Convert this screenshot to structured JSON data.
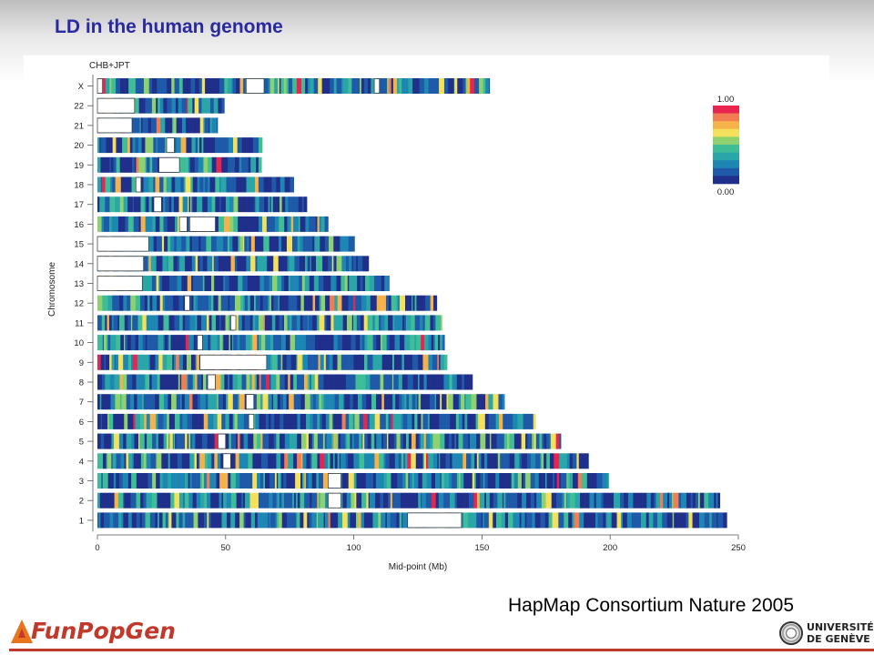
{
  "slide": {
    "title": "LD in the human genome",
    "citation": "HapMap Consortium Nature 2005",
    "logo_left_text": "FunPopGen",
    "logo_right_line1": "UNIVERSITÉ",
    "logo_right_line2": "DE GENÈVE",
    "accent_color": "#2a2aa0",
    "logo_color": "#c0392b"
  },
  "chart_data": {
    "type": "heatmap",
    "title": "CHB+JPT",
    "xlabel": "Mid-point (Mb)",
    "ylabel": "Chromosome",
    "xlim": [
      0,
      250
    ],
    "xticks": [
      0,
      50,
      100,
      150,
      200,
      250
    ],
    "grid": false,
    "legend": {
      "placement": "right",
      "max_label": "1.00",
      "min_label": "0.00",
      "colors": [
        "#1f2f8a",
        "#1e5aa8",
        "#1d86b3",
        "#2aa6a8",
        "#3fbd96",
        "#8fd16e",
        "#f4e05a",
        "#f6b24a",
        "#f27d52",
        "#e8244f"
      ]
    },
    "chromosomes": [
      {
        "name": "X",
        "length": 153.0,
        "gaps": [
          [
            0,
            2.0
          ],
          [
            58,
            65
          ],
          [
            108,
            110
          ]
        ]
      },
      {
        "name": "22",
        "length": 49.5,
        "gaps": [
          [
            0,
            14.5
          ]
        ]
      },
      {
        "name": "21",
        "length": 46.9,
        "gaps": [
          [
            0,
            13.5
          ]
        ]
      },
      {
        "name": "20",
        "length": 64.3,
        "gaps": [
          [
            27,
            30
          ]
        ]
      },
      {
        "name": "19",
        "length": 64.0,
        "gaps": [
          [
            24,
            32
          ]
        ]
      },
      {
        "name": "18",
        "length": 76.6,
        "gaps": [
          [
            15,
            17
          ]
        ]
      },
      {
        "name": "17",
        "length": 81.7,
        "gaps": [
          [
            22,
            25
          ]
        ]
      },
      {
        "name": "16",
        "length": 90.0,
        "gaps": [
          [
            32,
            35
          ],
          [
            36,
            46
          ]
        ]
      },
      {
        "name": "15",
        "length": 100.3,
        "gaps": [
          [
            0,
            20
          ]
        ]
      },
      {
        "name": "14",
        "length": 105.8,
        "gaps": [
          [
            0,
            18
          ]
        ]
      },
      {
        "name": "13",
        "length": 113.8,
        "gaps": [
          [
            0,
            17.5
          ]
        ]
      },
      {
        "name": "12",
        "length": 132.4,
        "gaps": [
          [
            34,
            36
          ]
        ]
      },
      {
        "name": "11",
        "length": 134.4,
        "gaps": [
          [
            52,
            54
          ]
        ]
      },
      {
        "name": "10",
        "length": 135.4,
        "gaps": [
          [
            39,
            41
          ]
        ]
      },
      {
        "name": "9",
        "length": 136.4,
        "gaps": [
          [
            40,
            66
          ]
        ]
      },
      {
        "name": "8",
        "length": 146.3,
        "gaps": [
          [
            43,
            46
          ]
        ]
      },
      {
        "name": "7",
        "length": 158.8,
        "gaps": [
          [
            58,
            61
          ]
        ]
      },
      {
        "name": "6",
        "length": 170.9,
        "gaps": [
          [
            59,
            61
          ]
        ]
      },
      {
        "name": "5",
        "length": 180.8,
        "gaps": [
          [
            47,
            50
          ]
        ]
      },
      {
        "name": "4",
        "length": 191.6,
        "gaps": [
          [
            49,
            52
          ]
        ]
      },
      {
        "name": "3",
        "length": 199.5,
        "gaps": [
          [
            90,
            95
          ]
        ]
      },
      {
        "name": "2",
        "length": 242.8,
        "gaps": [
          [
            90,
            95
          ]
        ]
      },
      {
        "name": "1",
        "length": 245.5,
        "gaps": [
          [
            121,
            142
          ]
        ]
      }
    ]
  }
}
